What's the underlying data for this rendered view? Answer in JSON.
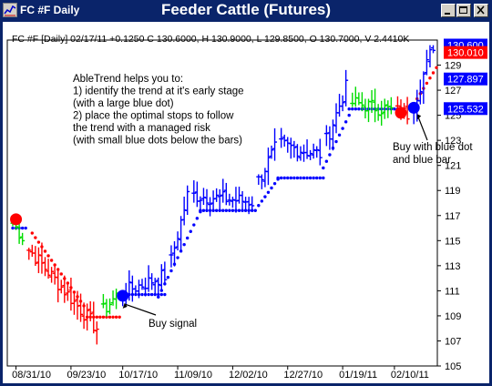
{
  "window": {
    "code": "FC #F Daily",
    "title": "Feeder Cattle (Futures)",
    "icon": "chart-icon",
    "controls": [
      "minimize-icon",
      "maximize-icon",
      "close-icon"
    ]
  },
  "colors": {
    "frame": "#0a246a",
    "up_bar": "#0000ff",
    "down_bar": "#ff0000",
    "neutral_bar": "#00dd00",
    "stop_dot": "#0000ff",
    "price_tag_red": "#ff0000",
    "price_tag_blue": "#0000ff"
  },
  "chart_data": {
    "type": "ohlc",
    "info_line": "FC #F [Daily] 02/17/11  +0.1250 C 130.6000, H 130.9000, L 129.8500, O 130.7000, V 2.4410K",
    "ylim": [
      105,
      131
    ],
    "y_ticks": [
      105,
      107,
      109,
      111,
      113,
      115,
      117,
      119,
      121,
      123,
      125,
      127,
      129
    ],
    "x_tick_labels": [
      "08/31/10",
      "09/23/10",
      "10/17/10",
      "11/09/10",
      "12/02/10",
      "12/27/10",
      "01/19/11",
      "02/10/11"
    ],
    "x_tick_index": [
      1,
      18,
      34,
      51,
      68,
      85,
      102,
      118
    ],
    "n_bars": 131,
    "price_tags": [
      {
        "label": "130.600",
        "value": 130.6,
        "color": "blue"
      },
      {
        "label": "130.010",
        "value": 130.01,
        "color": "red"
      },
      {
        "label": "127.897",
        "value": 127.897,
        "color": "blue"
      },
      {
        "label": "125.532",
        "value": 125.532,
        "color": "blue"
      }
    ],
    "segments": [
      {
        "from": 0,
        "to": 4,
        "start": 116.4,
        "end": 115.3,
        "color": "green"
      },
      {
        "from": 5,
        "to": 27,
        "start": 114.3,
        "end": 108.0,
        "color": "red"
      },
      {
        "from": 28,
        "to": 33,
        "start": 109.4,
        "end": 110.6,
        "color": "green"
      },
      {
        "from": 34,
        "to": 48,
        "start": 110.9,
        "end": 112.2,
        "color": "blue"
      },
      {
        "from": 49,
        "to": 55,
        "start": 113.4,
        "end": 118.6,
        "color": "blue"
      },
      {
        "from": 56,
        "to": 75,
        "start": 118.6,
        "end": 118.1,
        "color": "blue"
      },
      {
        "from": 76,
        "to": 82,
        "start": 119.8,
        "end": 122.3,
        "color": "blue"
      },
      {
        "from": 83,
        "to": 96,
        "start": 122.6,
        "end": 121.9,
        "color": "blue"
      },
      {
        "from": 97,
        "to": 104,
        "start": 123.0,
        "end": 127.2,
        "color": "blue"
      },
      {
        "from": 105,
        "to": 118,
        "start": 126.0,
        "end": 125.4,
        "color": "green"
      },
      {
        "from": 119,
        "to": 123,
        "start": 125.3,
        "end": 125.1,
        "color": "red"
      },
      {
        "from": 124,
        "to": 131,
        "start": 125.9,
        "end": 130.6,
        "color": "blue"
      }
    ],
    "stop_dot_runs": [
      {
        "from": 0,
        "to": 4,
        "value": 116.0,
        "color": "blue"
      },
      {
        "from": 6,
        "to": 22,
        "start": 115.6,
        "end": 109.8,
        "color": "red"
      },
      {
        "from": 23,
        "to": 33,
        "value": 108.9,
        "color": "red"
      },
      {
        "from": 36,
        "to": 47,
        "value": 110.7,
        "color": "blue"
      },
      {
        "from": 45,
        "to": 58,
        "start": 110.5,
        "end": 117.3,
        "color": "blue"
      },
      {
        "from": 58,
        "to": 75,
        "value": 117.4,
        "color": "blue"
      },
      {
        "from": 76,
        "to": 82,
        "start": 117.8,
        "end": 119.9,
        "color": "blue"
      },
      {
        "from": 82,
        "to": 96,
        "value": 120.0,
        "color": "blue"
      },
      {
        "from": 96,
        "to": 104,
        "start": 120.8,
        "end": 125.0,
        "color": "blue"
      },
      {
        "from": 104,
        "to": 120,
        "value": 125.5,
        "color": "blue"
      },
      {
        "from": 124,
        "to": 131,
        "start": 125.9,
        "end": 128.8,
        "color": "red"
      }
    ],
    "signals": [
      {
        "index": 1,
        "value": 116.7,
        "color": "red"
      },
      {
        "index": 34,
        "value": 110.6,
        "color": "blue"
      },
      {
        "index": 120,
        "value": 125.2,
        "color": "red"
      },
      {
        "index": 124,
        "value": 125.6,
        "color": "blue"
      }
    ],
    "annotations": {
      "intro": [
        "AbleTrend helps you to:",
        "1) identify the trend at it's early stage",
        "   (with a large blue dot)",
        "2) place the optimal stops to follow",
        "   the trend with a managed risk",
        "   (with small blue dots below the bars)"
      ],
      "buy_signal": "Buy signal",
      "buy_blue": [
        "Buy with blue dot",
        "and blue bar"
      ]
    }
  }
}
